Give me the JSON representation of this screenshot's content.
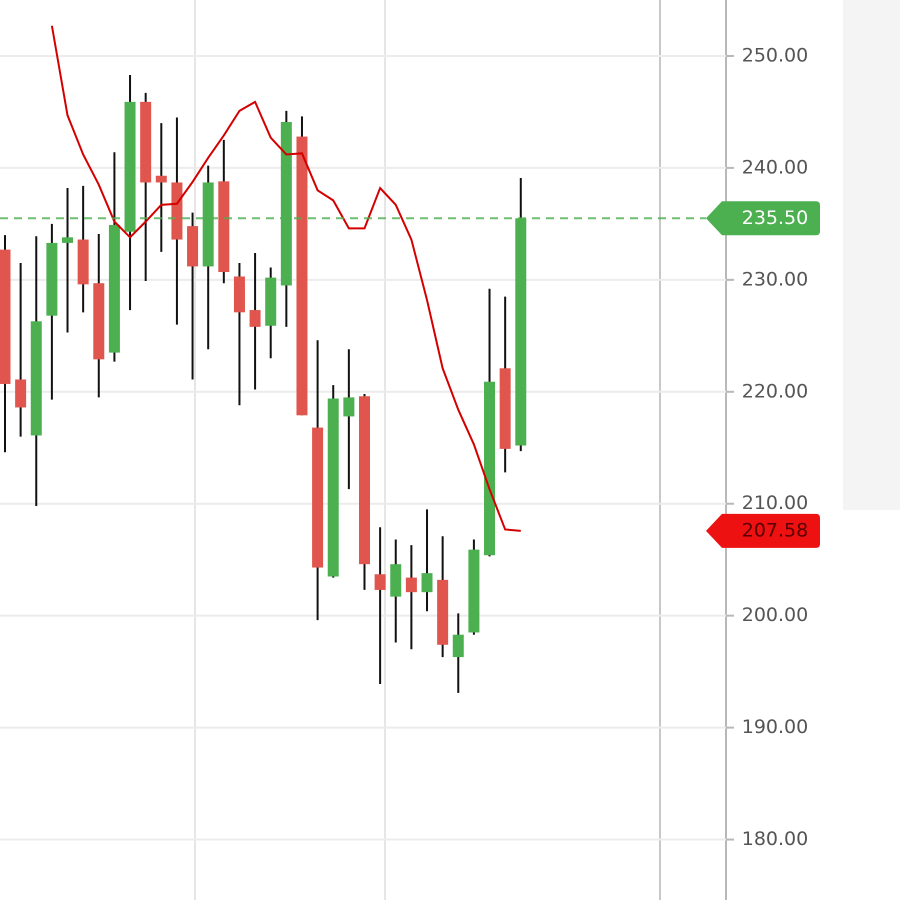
{
  "chart_data": {
    "type": "candlestick",
    "open": [
      232.7,
      221.1,
      216.1,
      226.8,
      233.3,
      233.6,
      229.7,
      223.5,
      234.3,
      245.9,
      239.3,
      238.7,
      234.8,
      231.2,
      238.8,
      230.3,
      227.3,
      225.9,
      229.5,
      242.8,
      216.8,
      203.5,
      217.8,
      219.6,
      203.7,
      201.7,
      203.4,
      202.1,
      203.2,
      196.3,
      198.5,
      205.4,
      222.1,
      215.2
    ],
    "high": [
      234.0,
      231.5,
      233.9,
      235.0,
      238.2,
      238.4,
      234.1,
      241.4,
      248.3,
      246.7,
      244.0,
      244.5,
      236.0,
      240.2,
      242.5,
      231.5,
      232.4,
      231.1,
      245.1,
      244.6,
      224.6,
      220.6,
      223.8,
      219.8,
      207.9,
      206.8,
      206.3,
      209.5,
      207.1,
      200.2,
      206.8,
      229.2,
      228.5,
      239.1
    ],
    "low": [
      214.6,
      216.0,
      209.8,
      219.3,
      225.3,
      227.1,
      219.5,
      222.7,
      227.3,
      229.9,
      232.5,
      226.0,
      221.1,
      223.8,
      229.7,
      218.8,
      220.2,
      223.0,
      225.8,
      217.9,
      199.6,
      203.4,
      211.3,
      202.3,
      193.9,
      197.6,
      197.0,
      200.4,
      196.3,
      193.1,
      198.3,
      205.3,
      212.8,
      214.7
    ],
    "close": [
      220.7,
      218.6,
      226.3,
      233.3,
      233.8,
      229.6,
      222.9,
      234.9,
      245.9,
      238.7,
      238.7,
      233.6,
      231.2,
      238.7,
      230.7,
      227.1,
      225.8,
      230.2,
      244.1,
      217.9,
      204.3,
      219.4,
      219.5,
      204.6,
      202.3,
      204.6,
      202.1,
      203.8,
      197.4,
      198.3,
      205.9,
      220.9,
      214.9,
      235.5
    ],
    "up_color": "#4caf50",
    "down_color": "#e0554d",
    "ma": {
      "color": "#d40000",
      "values": [
        null,
        null,
        null,
        252.7,
        244.7,
        241.2,
        238.5,
        235.2,
        233.8,
        235.2,
        236.7,
        236.8,
        238.75,
        240.9,
        242.9,
        245.1,
        245.9,
        242.7,
        241.2,
        241.3,
        238.0,
        237.1,
        234.6,
        234.6,
        238.2,
        236.7,
        233.6,
        228.2,
        222.1,
        218.4,
        215.3,
        211.3,
        207.7,
        207.58
      ]
    },
    "ylim": [
      174.6,
      255
    ],
    "yticks": [
      {
        "value": 180,
        "label": "180.00"
      },
      {
        "value": 190,
        "label": "190.00"
      },
      {
        "value": 200,
        "label": "200.00"
      },
      {
        "value": 210,
        "label": "210.00"
      },
      {
        "value": 220,
        "label": "220.00"
      },
      {
        "value": 230,
        "label": "230.00"
      },
      {
        "value": 240,
        "label": "240.00"
      },
      {
        "value": 250,
        "label": "250.00"
      }
    ],
    "grid": true,
    "price_line": {
      "value": 235.5,
      "label": "235.50",
      "color": "#4caf50"
    },
    "ma_label": {
      "value": 207.58,
      "label": "207.58",
      "color": "#ee1111"
    }
  }
}
